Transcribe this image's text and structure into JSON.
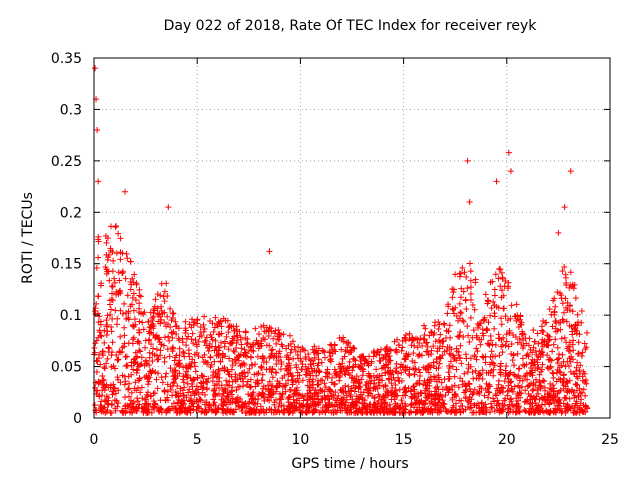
{
  "chart_data": {
    "type": "scatter",
    "title": "Day 022 of 2018, Rate Of TEC Index for receiver reyk",
    "xlabel": "GPS time / hours",
    "ylabel": "ROTI / TECUs",
    "xlim": [
      0,
      25
    ],
    "ylim": [
      0,
      0.35
    ],
    "xticks": [
      0,
      5,
      10,
      15,
      20,
      25
    ],
    "yticks": [
      0,
      0.05,
      0.1,
      0.15,
      0.2,
      0.25,
      0.3,
      0.35
    ],
    "xtick_labels": [
      "0",
      "5",
      "10",
      "15",
      "20",
      "25"
    ],
    "ytick_labels": [
      "0",
      "0.05",
      "0.1",
      "0.15",
      "0.2",
      "0.25",
      "0.3",
      "0.35"
    ],
    "grid": true,
    "marker": "+",
    "color": "#ff0000",
    "series": [
      {
        "name": "ROTI",
        "x_range": [
          0,
          23.9
        ],
        "notable_points": [
          {
            "x": 0.05,
            "y": 0.34
          },
          {
            "x": 0.1,
            "y": 0.31
          },
          {
            "x": 0.15,
            "y": 0.28
          },
          {
            "x": 0.2,
            "y": 0.23
          },
          {
            "x": 1.5,
            "y": 0.22
          },
          {
            "x": 3.6,
            "y": 0.205
          },
          {
            "x": 8.5,
            "y": 0.162
          },
          {
            "x": 18.1,
            "y": 0.25
          },
          {
            "x": 18.2,
            "y": 0.21
          },
          {
            "x": 19.5,
            "y": 0.23
          },
          {
            "x": 20.1,
            "y": 0.258
          },
          {
            "x": 20.2,
            "y": 0.24
          },
          {
            "x": 22.5,
            "y": 0.18
          },
          {
            "x": 22.8,
            "y": 0.205
          },
          {
            "x": 23.1,
            "y": 0.24
          }
        ],
        "envelope": [
          {
            "x": 0.0,
            "y": 0.2
          },
          {
            "x": 0.5,
            "y": 0.18
          },
          {
            "x": 1.0,
            "y": 0.19
          },
          {
            "x": 1.5,
            "y": 0.17
          },
          {
            "x": 2.0,
            "y": 0.15
          },
          {
            "x": 2.5,
            "y": 0.1
          },
          {
            "x": 3.0,
            "y": 0.12
          },
          {
            "x": 3.5,
            "y": 0.14
          },
          {
            "x": 4.0,
            "y": 0.09
          },
          {
            "x": 5.0,
            "y": 0.1
          },
          {
            "x": 6.0,
            "y": 0.1
          },
          {
            "x": 7.0,
            "y": 0.09
          },
          {
            "x": 8.0,
            "y": 0.09
          },
          {
            "x": 9.0,
            "y": 0.09
          },
          {
            "x": 10.0,
            "y": 0.07
          },
          {
            "x": 11.0,
            "y": 0.07
          },
          {
            "x": 12.0,
            "y": 0.08
          },
          {
            "x": 13.0,
            "y": 0.06
          },
          {
            "x": 14.0,
            "y": 0.07
          },
          {
            "x": 15.0,
            "y": 0.08
          },
          {
            "x": 16.0,
            "y": 0.09
          },
          {
            "x": 17.0,
            "y": 0.1
          },
          {
            "x": 17.5,
            "y": 0.14
          },
          {
            "x": 18.0,
            "y": 0.16
          },
          {
            "x": 18.5,
            "y": 0.14
          },
          {
            "x": 19.0,
            "y": 0.12
          },
          {
            "x": 19.5,
            "y": 0.15
          },
          {
            "x": 20.0,
            "y": 0.14
          },
          {
            "x": 20.5,
            "y": 0.11
          },
          {
            "x": 21.0,
            "y": 0.08
          },
          {
            "x": 21.5,
            "y": 0.09
          },
          {
            "x": 22.0,
            "y": 0.1
          },
          {
            "x": 22.5,
            "y": 0.15
          },
          {
            "x": 23.0,
            "y": 0.15
          },
          {
            "x": 23.5,
            "y": 0.12
          },
          {
            "x": 23.9,
            "y": 0.09
          }
        ]
      }
    ]
  }
}
